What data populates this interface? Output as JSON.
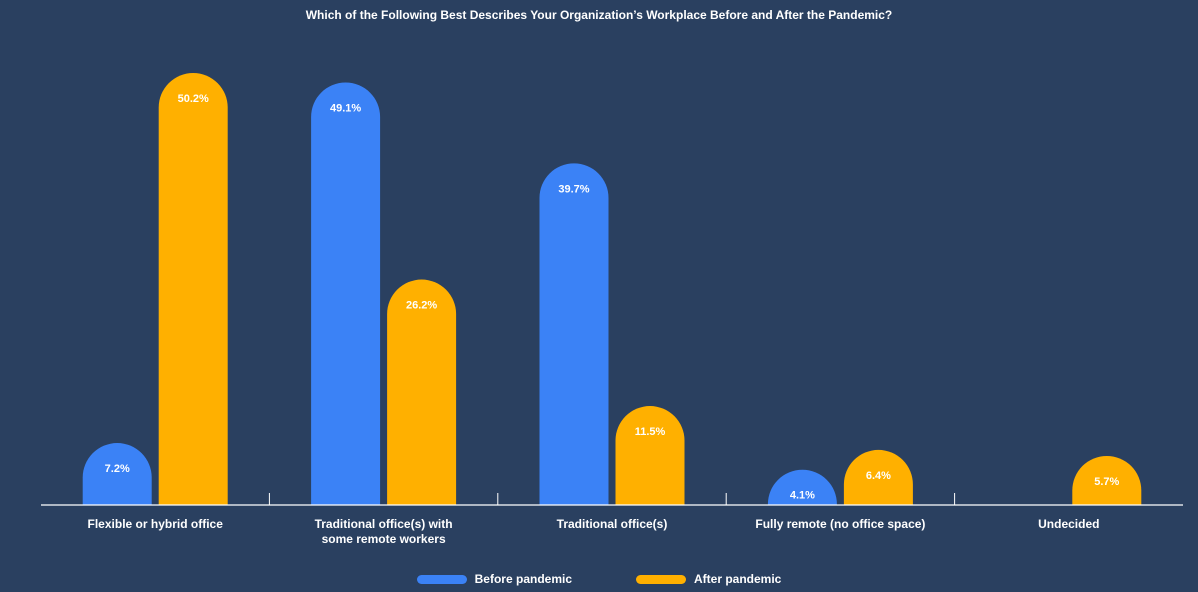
{
  "chart_data": {
    "type": "bar",
    "title": "Which of the Following Best Describes Your Organization’s Workplace Before and After the Pandemic?",
    "categories": [
      [
        "Flexible or hybrid office"
      ],
      [
        "Traditional office(s) with",
        "some remote workers"
      ],
      [
        "Traditional office(s)"
      ],
      [
        "Fully remote (no office space)"
      ],
      [
        "Undecided"
      ]
    ],
    "series": [
      {
        "name": "Before pandemic",
        "color": "#3b82f6",
        "values": [
          7.2,
          49.1,
          39.7,
          4.1,
          null
        ]
      },
      {
        "name": "After pandemic",
        "color": "#ffb000",
        "values": [
          50.2,
          26.2,
          11.5,
          6.4,
          5.7
        ]
      }
    ],
    "ylim": [
      0,
      53
    ],
    "grid": false,
    "legend": "bottom-center",
    "value_suffix": "%"
  }
}
